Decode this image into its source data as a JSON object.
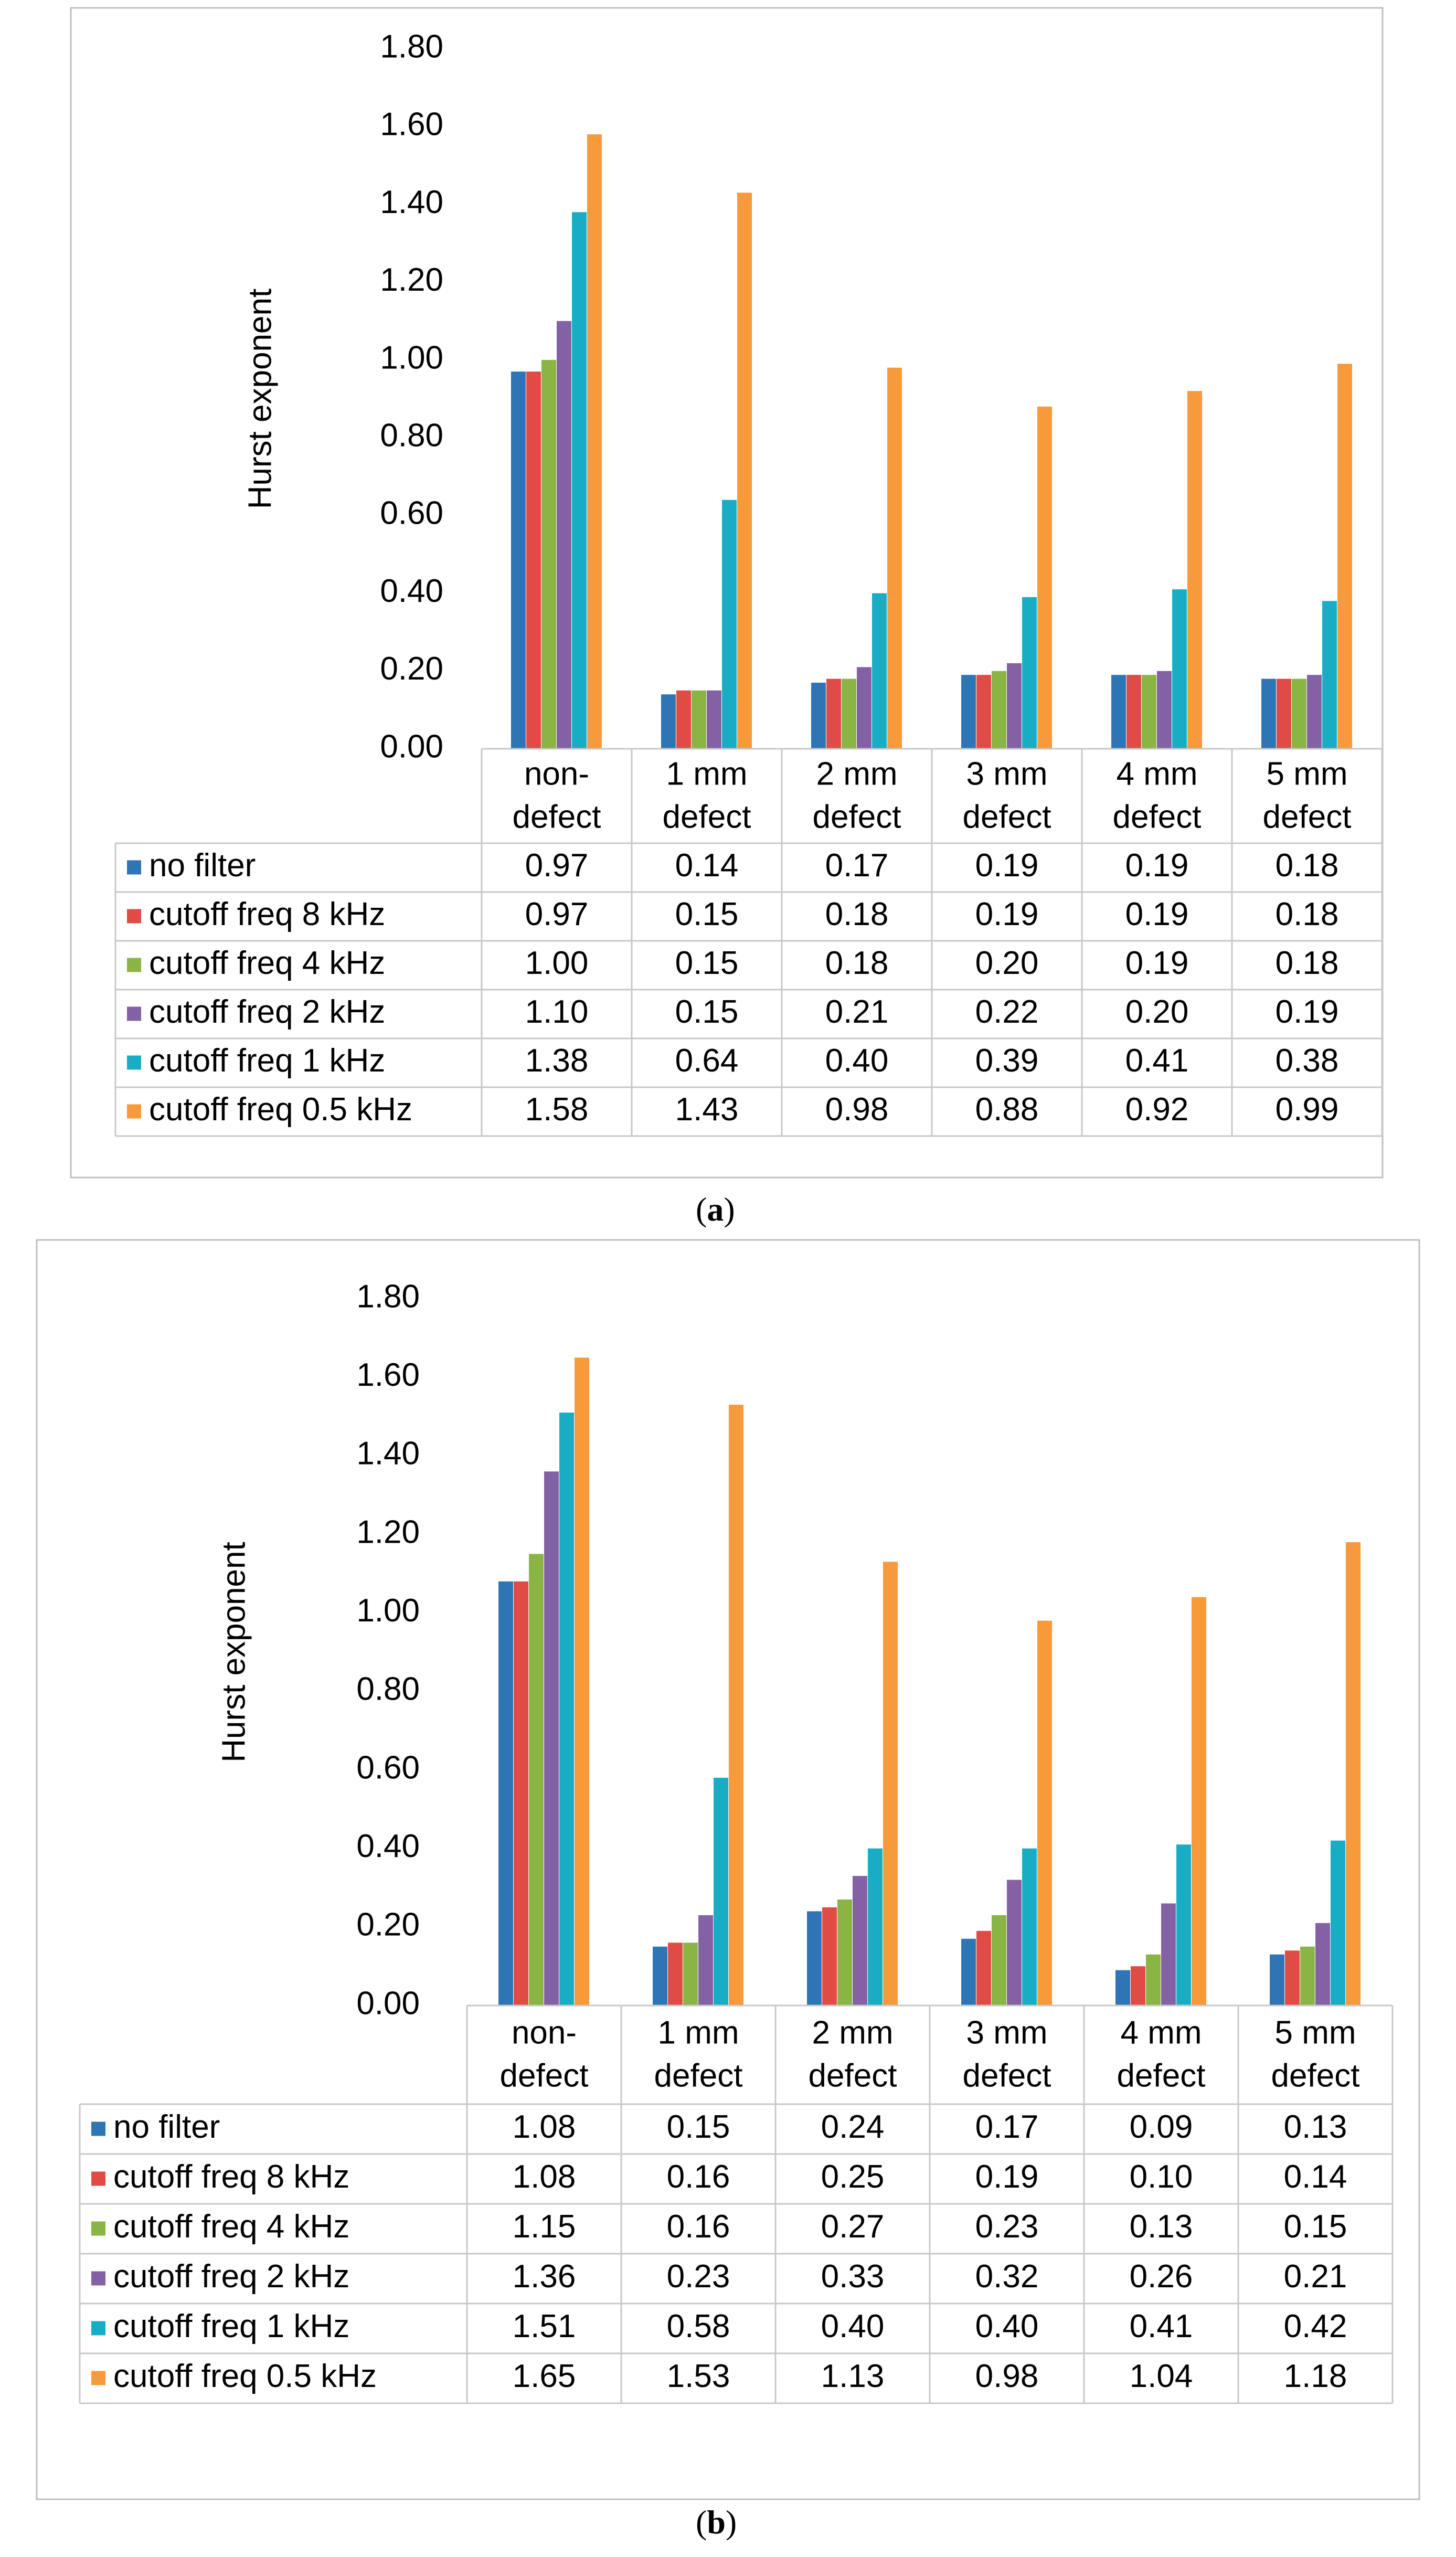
{
  "colors": {
    "no_filter": "#2e75b6",
    "cutoff_8": "#e04b45",
    "cutoff_4": "#8ab544",
    "cutoff_2": "#8460a5",
    "cutoff_1": "#19adc5",
    "cutoff_05": "#f79a3c",
    "grid_line": "#c8c8c8",
    "text": "#000000"
  },
  "figure": {
    "panels": [
      {
        "label_open": "(",
        "label": "a",
        "label_close": ")"
      },
      {
        "label_open": "(",
        "label": "b",
        "label_close": ")"
      }
    ]
  },
  "chart_data": [
    {
      "type": "bar",
      "ylabel": "Hurst exponent",
      "ylim": [
        0,
        1.8
      ],
      "yticks": [
        "0.00",
        "0.20",
        "0.40",
        "0.60",
        "0.80",
        "1.00",
        "1.20",
        "1.40",
        "1.60",
        "1.80"
      ],
      "categories": [
        [
          "non-",
          "defect"
        ],
        [
          "1 mm",
          "defect"
        ],
        [
          "2 mm",
          "defect"
        ],
        [
          "3 mm",
          "defect"
        ],
        [
          "4 mm",
          "defect"
        ],
        [
          "5 mm",
          "defect"
        ]
      ],
      "series": [
        {
          "name": "no filter",
          "values": [
            0.97,
            0.14,
            0.17,
            0.19,
            0.19,
            0.18
          ],
          "labels": [
            "0.97",
            "0.14",
            "0.17",
            "0.19",
            "0.19",
            "0.18"
          ]
        },
        {
          "name": "cutoff freq 8 kHz",
          "values": [
            0.97,
            0.15,
            0.18,
            0.19,
            0.19,
            0.18
          ],
          "labels": [
            "0.97",
            "0.15",
            "0.18",
            "0.19",
            "0.19",
            "0.18"
          ]
        },
        {
          "name": "cutoff freq 4 kHz",
          "values": [
            1.0,
            0.15,
            0.18,
            0.2,
            0.19,
            0.18
          ],
          "labels": [
            "1.00",
            "0.15",
            "0.18",
            "0.20",
            "0.19",
            "0.18"
          ]
        },
        {
          "name": "cutoff freq 2 kHz",
          "values": [
            1.1,
            0.15,
            0.21,
            0.22,
            0.2,
            0.19
          ],
          "labels": [
            "1.10",
            "0.15",
            "0.21",
            "0.22",
            "0.20",
            "0.19"
          ]
        },
        {
          "name": "cutoff freq 1 kHz",
          "values": [
            1.38,
            0.64,
            0.4,
            0.39,
            0.41,
            0.38
          ],
          "labels": [
            "1.38",
            "0.64",
            "0.40",
            "0.39",
            "0.41",
            "0.38"
          ]
        },
        {
          "name": "cutoff freq 0.5 kHz",
          "values": [
            1.58,
            1.43,
            0.98,
            0.88,
            0.92,
            0.99
          ],
          "labels": [
            "1.58",
            "1.43",
            "0.98",
            "0.88",
            "0.92",
            "0.99"
          ]
        }
      ]
    },
    {
      "type": "bar",
      "ylabel": "Hurst exponent",
      "ylim": [
        0,
        1.8
      ],
      "yticks": [
        "0.00",
        "0.20",
        "0.40",
        "0.60",
        "0.80",
        "1.00",
        "1.20",
        "1.40",
        "1.60",
        "1.80"
      ],
      "categories": [
        [
          "non-",
          "defect"
        ],
        [
          "1 mm",
          "defect"
        ],
        [
          "2 mm",
          "defect"
        ],
        [
          "3 mm",
          "defect"
        ],
        [
          "4 mm",
          "defect"
        ],
        [
          "5 mm",
          "defect"
        ]
      ],
      "series": [
        {
          "name": "no filter",
          "values": [
            1.08,
            0.15,
            0.24,
            0.17,
            0.09,
            0.13
          ],
          "labels": [
            "1.08",
            "0.15",
            "0.24",
            "0.17",
            "0.09",
            "0.13"
          ]
        },
        {
          "name": "cutoff freq 8 kHz",
          "values": [
            1.08,
            0.16,
            0.25,
            0.19,
            0.1,
            0.14
          ],
          "labels": [
            "1.08",
            "0.16",
            "0.25",
            "0.19",
            "0.10",
            "0.14"
          ]
        },
        {
          "name": "cutoff freq 4 kHz",
          "values": [
            1.15,
            0.16,
            0.27,
            0.23,
            0.13,
            0.15
          ],
          "labels": [
            "1.15",
            "0.16",
            "0.27",
            "0.23",
            "0.13",
            "0.15"
          ]
        },
        {
          "name": "cutoff freq 2 kHz",
          "values": [
            1.36,
            0.23,
            0.33,
            0.32,
            0.26,
            0.21
          ],
          "labels": [
            "1.36",
            "0.23",
            "0.33",
            "0.32",
            "0.26",
            "0.21"
          ]
        },
        {
          "name": "cutoff freq 1 kHz",
          "values": [
            1.51,
            0.58,
            0.4,
            0.4,
            0.41,
            0.42
          ],
          "labels": [
            "1.51",
            "0.58",
            "0.40",
            "0.40",
            "0.41",
            "0.42"
          ]
        },
        {
          "name": "cutoff freq 0.5 kHz",
          "values": [
            1.65,
            1.53,
            1.13,
            0.98,
            1.04,
            1.18
          ],
          "labels": [
            "1.65",
            "1.53",
            "1.13",
            "0.98",
            "1.04",
            "1.18"
          ]
        }
      ]
    }
  ]
}
